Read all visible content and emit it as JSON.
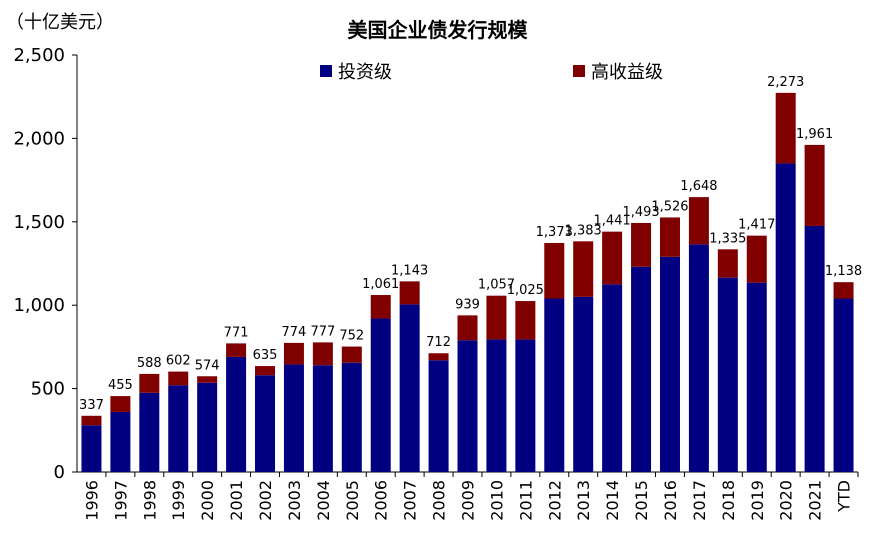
{
  "unit_label": "（十亿美元）",
  "chart_data": {
    "type": "bar",
    "stacked": true,
    "title": "美国企业债发行规模",
    "categories": [
      "1996",
      "1997",
      "1998",
      "1999",
      "2000",
      "2001",
      "2002",
      "2003",
      "2004",
      "2005",
      "2006",
      "2007",
      "2008",
      "2009",
      "2010",
      "2011",
      "2012",
      "2013",
      "2014",
      "2015",
      "2016",
      "2017",
      "2018",
      "2019",
      "2020",
      "2021",
      "YTD"
    ],
    "series": [
      {
        "name": "投资级",
        "color": "#000080",
        "values": [
          280,
          360,
          475,
          520,
          535,
          690,
          580,
          645,
          640,
          655,
          920,
          1005,
          670,
          790,
          795,
          795,
          1040,
          1050,
          1125,
          1230,
          1290,
          1365,
          1165,
          1135,
          1850,
          1475,
          1040
        ]
      },
      {
        "name": "高收益级",
        "color": "#800000",
        "values": [
          57,
          95,
          113,
          82,
          39,
          81,
          55,
          129,
          137,
          97,
          141,
          138,
          42,
          149,
          262,
          230,
          333,
          333,
          316,
          263,
          236,
          283,
          170,
          282,
          423,
          486,
          98
        ]
      }
    ],
    "totals": [
      "337",
      "455",
      "588",
      "602",
      "574",
      "771",
      "635",
      "774",
      "777",
      "752",
      "1,061",
      "1,143",
      "712",
      "939",
      "1,057",
      "1,025",
      "1,373",
      "1,383",
      "1,441",
      "1,493",
      "1,526",
      "1,648",
      "1,335",
      "1,417",
      "2,273",
      "1,961",
      "1,138"
    ],
    "total_values": [
      337,
      455,
      588,
      602,
      574,
      771,
      635,
      774,
      777,
      752,
      1061,
      1143,
      712,
      939,
      1057,
      1025,
      1373,
      1383,
      1441,
      1493,
      1526,
      1648,
      1335,
      1417,
      2273,
      1961,
      1138
    ],
    "ylim": [
      0,
      2500
    ],
    "yticks": [
      0,
      500,
      1000,
      1500,
      2000,
      2500
    ],
    "ytick_labels": [
      "0",
      "500",
      "1,000",
      "1,500",
      "2,000",
      "2,500"
    ],
    "legend_position": "top",
    "grid": false
  }
}
